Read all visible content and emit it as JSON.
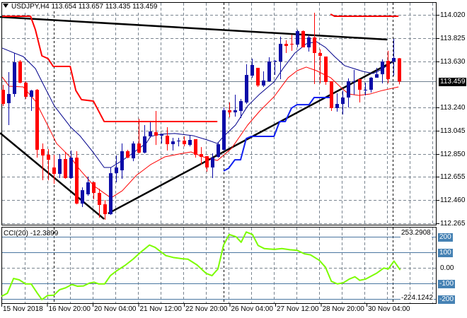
{
  "header": {
    "symbol": "USDJPY,H4",
    "open": "113.654",
    "high": "113.657",
    "low": "113.435",
    "close": "113.459"
  },
  "price_axis": {
    "labels": [
      "114.020",
      "113.825",
      "113.630",
      "113.240",
      "113.045",
      "112.850",
      "112.655",
      "112.460",
      "112.265"
    ],
    "current": "113.459"
  },
  "cci_panel": {
    "label": "CCI(20) -12.3899",
    "max_label": "253.2908",
    "min_label": "-224.1242",
    "levels": [
      {
        "value": 200,
        "label": "200"
      },
      {
        "value": 100,
        "label": "100"
      },
      {
        "value": 0,
        "label": "0.00"
      },
      {
        "value": -100,
        "label": "-100"
      },
      {
        "value": -200,
        "label": "-200"
      }
    ]
  },
  "time_axis": {
    "labels": [
      "15 Nov 2018",
      "16 Nov 20:00",
      "20 Nov 04:00",
      "21 Nov 12:00",
      "22 Nov 20:00",
      "26 Nov 04:00",
      "27 Nov 12:00",
      "28 Nov 20:00",
      "30 Nov 04:00"
    ]
  },
  "colors": {
    "bull": "#0c0ca8",
    "bear": "#ff0000",
    "ma_fast": "#00008b",
    "ma_slow": "#ff0000",
    "step_upper": "#ff0000",
    "step_lower": "#1020f0",
    "trend": "#000000",
    "cci": "#7cfc00",
    "level": "#4a76a0",
    "grid": "#7a8590"
  },
  "chart_data": {
    "type": "candlestick",
    "title": "USDJPY,H4",
    "ylim": [
      112.265,
      114.02
    ],
    "candles_ohlc": [
      [
        113.389,
        113.431,
        113.252,
        113.27
      ],
      [
        113.276,
        113.538,
        113.092,
        113.354
      ],
      [
        113.354,
        113.699,
        113.33,
        113.621
      ],
      [
        113.627,
        113.639,
        113.443,
        113.449
      ],
      [
        113.449,
        113.461,
        113.312,
        113.33
      ],
      [
        113.33,
        113.389,
        113.211,
        113.383
      ],
      [
        113.389,
        113.395,
        112.818,
        112.884
      ],
      [
        112.89,
        112.937,
        112.628,
        112.836
      ],
      [
        112.842,
        112.89,
        112.628,
        112.8
      ],
      [
        112.735,
        112.842,
        112.598,
        112.681
      ],
      [
        112.681,
        112.848,
        112.646,
        112.806
      ],
      [
        112.806,
        112.866,
        112.64,
        112.646
      ],
      [
        112.646,
        112.878,
        112.64,
        112.818
      ],
      [
        112.818,
        112.872,
        112.425,
        112.431
      ],
      [
        112.431,
        112.568,
        112.402,
        112.544
      ],
      [
        112.509,
        112.657,
        112.497,
        112.61
      ],
      [
        112.61,
        112.616,
        112.467,
        112.521
      ],
      [
        112.521,
        112.556,
        112.312,
        112.42
      ],
      [
        112.425,
        112.461,
        112.295,
        112.342
      ],
      [
        112.342,
        112.735,
        112.336,
        112.687
      ],
      [
        112.687,
        112.836,
        112.61,
        112.735
      ],
      [
        112.711,
        112.937,
        112.64,
        112.872
      ],
      [
        112.872,
        112.884,
        112.812,
        112.818
      ],
      [
        112.812,
        112.955,
        112.788,
        112.937
      ],
      [
        112.937,
        113.145,
        112.854,
        112.86
      ],
      [
        112.86,
        113.092,
        112.854,
        112.997
      ],
      [
        112.997,
        113.116,
        112.985,
        113.038
      ],
      [
        113.032,
        113.211,
        112.925,
        113.003
      ],
      [
        113.003,
        113.015,
        112.937,
        113.015
      ],
      [
        113.003,
        113.074,
        112.878,
        112.931
      ],
      [
        112.931,
        112.985,
        112.878,
        112.955
      ],
      [
        112.961,
        112.985,
        112.913,
        112.961
      ],
      [
        112.961,
        112.997,
        112.913,
        112.931
      ],
      [
        112.925,
        113.003,
        112.913,
        112.967
      ],
      [
        112.973,
        112.973,
        112.818,
        112.842
      ],
      [
        112.848,
        112.907,
        112.759,
        112.824
      ],
      [
        112.83,
        112.83,
        112.699,
        112.735
      ],
      [
        112.735,
        112.854,
        112.646,
        112.818
      ],
      [
        112.824,
        112.943,
        112.818,
        112.931
      ],
      [
        112.884,
        113.241,
        112.878,
        113.217
      ],
      [
        113.217,
        113.282,
        113.157,
        113.199
      ],
      [
        113.199,
        113.348,
        113.163,
        113.217
      ],
      [
        113.211,
        113.312,
        113.151,
        113.294
      ],
      [
        113.282,
        113.604,
        113.27,
        113.514
      ],
      [
        113.508,
        113.651,
        113.49,
        113.598
      ],
      [
        113.574,
        113.574,
        113.413,
        113.425
      ],
      [
        113.425,
        113.544,
        113.413,
        113.467
      ],
      [
        113.461,
        113.663,
        113.455,
        113.627
      ],
      [
        113.627,
        113.639,
        113.514,
        113.633
      ],
      [
        113.627,
        113.836,
        113.479,
        113.776
      ],
      [
        113.776,
        113.806,
        113.699,
        113.758
      ],
      [
        113.776,
        113.853,
        113.717,
        113.77
      ],
      [
        113.77,
        113.895,
        113.746,
        113.883
      ],
      [
        113.883,
        113.889,
        113.746,
        113.746
      ],
      [
        113.746,
        113.853,
        113.711,
        113.83
      ],
      [
        113.83,
        114.038,
        113.437,
        113.699
      ],
      [
        113.699,
        113.729,
        113.443,
        113.675
      ],
      [
        113.669,
        113.669,
        113.431,
        113.455
      ],
      [
        113.461,
        113.461,
        113.211,
        113.235
      ],
      [
        113.235,
        113.36,
        113.205,
        113.27
      ],
      [
        113.27,
        113.383,
        113.181,
        113.324
      ],
      [
        113.324,
        113.485,
        113.241,
        113.461
      ],
      [
        113.455,
        113.556,
        113.348,
        113.461
      ],
      [
        113.479,
        113.479,
        113.282,
        113.389
      ],
      [
        113.383,
        113.449,
        113.342,
        113.389
      ],
      [
        113.389,
        113.497,
        113.366,
        113.491
      ],
      [
        113.491,
        113.574,
        113.491,
        113.52
      ],
      [
        113.52,
        113.645,
        113.443,
        113.627
      ],
      [
        113.633,
        113.717,
        113.443,
        113.479
      ],
      [
        113.627,
        113.818,
        113.508,
        113.657
      ],
      [
        113.654,
        113.657,
        113.435,
        113.459
      ]
    ],
    "ma_fast": [
      [
        0.9,
        113.74
      ],
      [
        3,
        113.699
      ],
      [
        4.6,
        113.669
      ],
      [
        6.75,
        113.568
      ],
      [
        8,
        113.449
      ],
      [
        10.1,
        113.253
      ],
      [
        13,
        113.074
      ],
      [
        14.6,
        113.003
      ],
      [
        17.1,
        112.854
      ],
      [
        18.9,
        112.735
      ],
      [
        20.1,
        112.735
      ],
      [
        22.1,
        112.794
      ],
      [
        23.9,
        112.854
      ],
      [
        26.4,
        112.943
      ],
      [
        27.1,
        112.997
      ],
      [
        28.9,
        113.015
      ],
      [
        31.4,
        113.021
      ],
      [
        34.6,
        113.003
      ],
      [
        37.1,
        112.967
      ],
      [
        38.9,
        112.937
      ],
      [
        40,
        112.997
      ],
      [
        42.1,
        113.092
      ],
      [
        44.25,
        113.253
      ],
      [
        46.4,
        113.354
      ],
      [
        48.9,
        113.455
      ],
      [
        50.5,
        113.568
      ],
      [
        52.6,
        113.699
      ],
      [
        54.6,
        113.776
      ],
      [
        56.4,
        113.794
      ],
      [
        58,
        113.746
      ],
      [
        59.6,
        113.669
      ],
      [
        61.4,
        113.592
      ],
      [
        63,
        113.568
      ],
      [
        64.6,
        113.544
      ],
      [
        66.4,
        113.526
      ],
      [
        68,
        113.562
      ],
      [
        69.9,
        113.627
      ]
    ],
    "ma_slow": [
      [
        0.9,
        113.496
      ],
      [
        2.1,
        113.419
      ],
      [
        4.6,
        113.413
      ],
      [
        6.75,
        113.294
      ],
      [
        8.9,
        113.092
      ],
      [
        10.5,
        112.937
      ],
      [
        13,
        112.818
      ],
      [
        14.6,
        112.717
      ],
      [
        17.1,
        112.58
      ],
      [
        20.1,
        112.479
      ],
      [
        22.1,
        112.539
      ],
      [
        24.6,
        112.669
      ],
      [
        27.1,
        112.759
      ],
      [
        29.6,
        112.824
      ],
      [
        32.1,
        112.848
      ],
      [
        34.25,
        112.866
      ],
      [
        36.4,
        112.824
      ],
      [
        38.9,
        112.794
      ],
      [
        41.4,
        112.896
      ],
      [
        44.25,
        113.092
      ],
      [
        46.4,
        113.211
      ],
      [
        48.9,
        113.33
      ],
      [
        51.4,
        113.491
      ],
      [
        53,
        113.55
      ],
      [
        54.6,
        113.58
      ],
      [
        56.4,
        113.55
      ],
      [
        58.9,
        113.491
      ],
      [
        60.9,
        113.401
      ],
      [
        62.1,
        113.354
      ],
      [
        63.9,
        113.342
      ],
      [
        65.9,
        113.354
      ],
      [
        68,
        113.383
      ],
      [
        70.9,
        113.413
      ]
    ],
    "step_upper": [
      [
        [
          0.9,
          114.008
        ],
        [
          5.9,
          114.008
        ],
        [
          6.75,
          113.895
        ],
        [
          7.9,
          113.675
        ],
        [
          9,
          113.651
        ],
        [
          9.9,
          113.586
        ],
        [
          12.9,
          113.586
        ],
        [
          13.9,
          113.383
        ],
        [
          14.9,
          113.306
        ],
        [
          17,
          113.294
        ],
        [
          18.9,
          113.122
        ],
        [
          38.9,
          113.122
        ]
      ],
      [
        [
          58.9,
          114.026
        ],
        [
          59.6,
          114.008
        ],
        [
          70.9,
          114.008
        ]
      ]
    ],
    "step_lower": [
      [
        40,
        112.705
      ],
      [
        40.9,
        112.729
      ],
      [
        42,
        112.8
      ],
      [
        43,
        112.8
      ],
      [
        44,
        112.979
      ],
      [
        44.9,
        112.997
      ],
      [
        48.9,
        112.997
      ],
      [
        49.9,
        113.122
      ],
      [
        50.9,
        113.122
      ],
      [
        52,
        113.235
      ],
      [
        53,
        113.264
      ],
      [
        55.1,
        113.264
      ],
      [
        56,
        113.324
      ],
      [
        59.25,
        113.324
      ]
    ],
    "trendlines": [
      [
        [
          0.5,
          114.002
        ],
        [
          68.9,
          113.812
        ]
      ],
      [
        [
          0.5,
          113.026
        ],
        [
          18.9,
          112.301
        ]
      ],
      [
        [
          19.6,
          112.348
        ],
        [
          69.9,
          113.627
        ]
      ]
    ],
    "cci": {
      "name": "CCI(20)",
      "ylim": [
        -224.1242,
        253.2908
      ],
      "points": [
        [
          0.76,
          -182
        ],
        [
          1.8,
          -162
        ],
        [
          2.9,
          -67
        ],
        [
          3.9,
          -76
        ],
        [
          5,
          -102
        ],
        [
          6,
          -102
        ],
        [
          7.1,
          -162
        ],
        [
          7.9,
          -203
        ],
        [
          8.9,
          -177
        ],
        [
          10,
          -175
        ],
        [
          11,
          -140
        ],
        [
          12.1,
          -127
        ],
        [
          13.2,
          -106
        ],
        [
          14.2,
          -117
        ],
        [
          15.25,
          -115
        ],
        [
          16.3,
          -97
        ],
        [
          17.1,
          -91
        ],
        [
          17.9,
          -102
        ],
        [
          19,
          -102
        ],
        [
          20,
          -49
        ],
        [
          21.1,
          -18
        ],
        [
          22.7,
          20
        ],
        [
          24,
          57
        ],
        [
          25.3,
          100
        ],
        [
          26.9,
          148
        ],
        [
          27.9,
          133
        ],
        [
          29.8,
          80
        ],
        [
          31.1,
          68
        ],
        [
          32.7,
          60
        ],
        [
          33.7,
          57
        ],
        [
          35.3,
          20
        ],
        [
          36.9,
          -34
        ],
        [
          37.95,
          -49
        ],
        [
          39,
          -6
        ],
        [
          40,
          148
        ],
        [
          41,
          216
        ],
        [
          42.2,
          201
        ],
        [
          43.1,
          166
        ],
        [
          44,
          232
        ],
        [
          45.1,
          216
        ],
        [
          46.1,
          145
        ],
        [
          47.2,
          125
        ],
        [
          49,
          120
        ],
        [
          50.3,
          125
        ],
        [
          51.7,
          118
        ],
        [
          53,
          114
        ],
        [
          54.3,
          91
        ],
        [
          55.35,
          85
        ],
        [
          56.9,
          50
        ],
        [
          58,
          5
        ],
        [
          59.05,
          -86
        ],
        [
          60.1,
          -102
        ],
        [
          61.15,
          -95
        ],
        [
          62.2,
          -71
        ],
        [
          63.2,
          -56
        ],
        [
          64.05,
          -79
        ],
        [
          65.1,
          -71
        ],
        [
          67,
          -34
        ],
        [
          68.3,
          0
        ],
        [
          69.1,
          -6
        ],
        [
          70.1,
          45
        ],
        [
          71.2,
          -12.39
        ]
      ]
    }
  }
}
